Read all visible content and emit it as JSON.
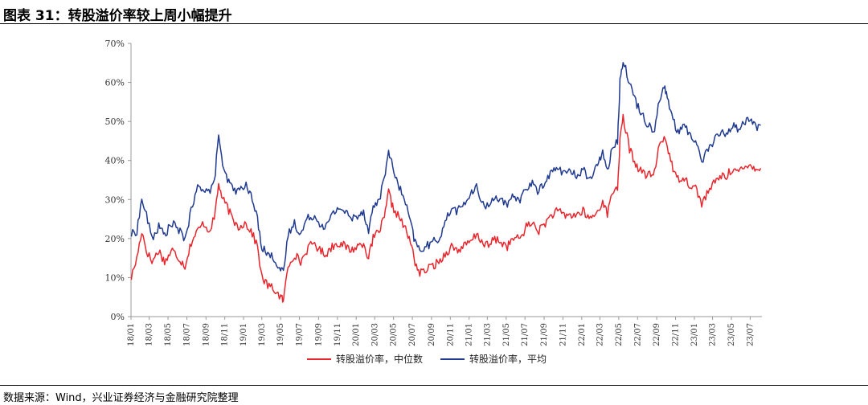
{
  "figure_title": "图表 31：转股溢价率较上周小幅提升",
  "source_note": "数据来源：Wind，兴业证券经济与金融研究院整理",
  "colors": {
    "median": "#e8262d",
    "mean": "#1f3a8f",
    "axis": "#999999"
  },
  "chart_data": {
    "type": "line",
    "title": "",
    "xlabel": "",
    "ylabel": "",
    "ylim": [
      0,
      70
    ],
    "y_unit": "%",
    "y_ticks": [
      "0%",
      "10%",
      "20%",
      "30%",
      "40%",
      "50%",
      "60%",
      "70%"
    ],
    "x_ticks": [
      "18/01",
      "18/03",
      "18/05",
      "18/07",
      "18/09",
      "18/11",
      "19/01",
      "19/03",
      "19/05",
      "19/07",
      "19/09",
      "19/11",
      "20/01",
      "20/03",
      "20/05",
      "20/07",
      "20/09",
      "20/11",
      "21/01",
      "21/03",
      "21/05",
      "21/07",
      "21/09",
      "21/11",
      "22/01",
      "22/03",
      "22/05",
      "22/07",
      "22/09",
      "22/11",
      "23/01",
      "23/03",
      "23/05",
      "23/07"
    ],
    "legend_position": "bottom",
    "grid": false,
    "series": [
      {
        "name": "转股溢价率，中位数",
        "color": "#e8262d",
        "points": [
          [
            "2018-01-02",
            10
          ],
          [
            "2018-01-20",
            15
          ],
          [
            "2018-02-05",
            22
          ],
          [
            "2018-02-20",
            17
          ],
          [
            "2018-03-10",
            14
          ],
          [
            "2018-04-01",
            17
          ],
          [
            "2018-04-20",
            14
          ],
          [
            "2018-05-15",
            17
          ],
          [
            "2018-06-05",
            15
          ],
          [
            "2018-06-25",
            13
          ],
          [
            "2018-07-15",
            19
          ],
          [
            "2018-08-05",
            22
          ],
          [
            "2018-08-25",
            24
          ],
          [
            "2018-09-10",
            22
          ],
          [
            "2018-09-28",
            25
          ],
          [
            "2018-10-12",
            34
          ],
          [
            "2018-10-25",
            30
          ],
          [
            "2018-11-10",
            28
          ],
          [
            "2018-11-25",
            25
          ],
          [
            "2018-12-15",
            23
          ],
          [
            "2019-01-05",
            24
          ],
          [
            "2019-01-25",
            22
          ],
          [
            "2019-02-15",
            18
          ],
          [
            "2019-03-01",
            10
          ],
          [
            "2019-03-20",
            8
          ],
          [
            "2019-04-10",
            7
          ],
          [
            "2019-05-01",
            5
          ],
          [
            "2019-05-10",
            4
          ],
          [
            "2019-05-25",
            13
          ],
          [
            "2019-06-15",
            16
          ],
          [
            "2019-07-05",
            14
          ],
          [
            "2019-07-25",
            17
          ],
          [
            "2019-08-15",
            19
          ],
          [
            "2019-09-05",
            17
          ],
          [
            "2019-09-25",
            16
          ],
          [
            "2019-10-15",
            18
          ],
          [
            "2019-11-05",
            19
          ],
          [
            "2019-11-25",
            18
          ],
          [
            "2019-12-15",
            17
          ],
          [
            "2020-01-05",
            18
          ],
          [
            "2020-01-25",
            19
          ],
          [
            "2020-02-10",
            15
          ],
          [
            "2020-02-25",
            20
          ],
          [
            "2020-03-15",
            22
          ],
          [
            "2020-04-01",
            25
          ],
          [
            "2020-04-15",
            32
          ],
          [
            "2020-04-28",
            28
          ],
          [
            "2020-05-15",
            26
          ],
          [
            "2020-06-05",
            23
          ],
          [
            "2020-06-25",
            19
          ],
          [
            "2020-07-10",
            14
          ],
          [
            "2020-07-25",
            11
          ],
          [
            "2020-08-15",
            12
          ],
          [
            "2020-09-05",
            13
          ],
          [
            "2020-09-25",
            14
          ],
          [
            "2020-10-15",
            16
          ],
          [
            "2020-11-05",
            18
          ],
          [
            "2020-11-25",
            17
          ],
          [
            "2020-12-15",
            18
          ],
          [
            "2021-01-05",
            19
          ],
          [
            "2021-01-25",
            21
          ],
          [
            "2021-02-15",
            19
          ],
          [
            "2021-03-05",
            18
          ],
          [
            "2021-03-25",
            20
          ],
          [
            "2021-04-15",
            19
          ],
          [
            "2021-05-05",
            18
          ],
          [
            "2021-05-25",
            20
          ],
          [
            "2021-06-15",
            20
          ],
          [
            "2021-07-05",
            23
          ],
          [
            "2021-07-25",
            24
          ],
          [
            "2021-08-15",
            22
          ],
          [
            "2021-09-05",
            24
          ],
          [
            "2021-09-25",
            26
          ],
          [
            "2021-10-15",
            27
          ],
          [
            "2021-11-05",
            26
          ],
          [
            "2021-11-25",
            26
          ],
          [
            "2021-12-15",
            26
          ],
          [
            "2022-01-05",
            27
          ],
          [
            "2022-01-25",
            25
          ],
          [
            "2022-02-10",
            26
          ],
          [
            "2022-02-25",
            27
          ],
          [
            "2022-03-10",
            30
          ],
          [
            "2022-03-25",
            26
          ],
          [
            "2022-04-10",
            32
          ],
          [
            "2022-04-27",
            33
          ],
          [
            "2022-05-05",
            45
          ],
          [
            "2022-05-15",
            51
          ],
          [
            "2022-06-05",
            43
          ],
          [
            "2022-06-25",
            39
          ],
          [
            "2022-07-15",
            37
          ],
          [
            "2022-08-05",
            36
          ],
          [
            "2022-08-25",
            37
          ],
          [
            "2022-09-10",
            44
          ],
          [
            "2022-09-25",
            46
          ],
          [
            "2022-10-05",
            44
          ],
          [
            "2022-10-20",
            39
          ],
          [
            "2022-11-05",
            35
          ],
          [
            "2022-11-25",
            36
          ],
          [
            "2022-12-15",
            34
          ],
          [
            "2023-01-05",
            33
          ],
          [
            "2023-01-25",
            29
          ],
          [
            "2023-02-15",
            32
          ],
          [
            "2023-03-05",
            34
          ],
          [
            "2023-03-25",
            36
          ],
          [
            "2023-04-15",
            36
          ],
          [
            "2023-05-05",
            38
          ],
          [
            "2023-05-25",
            37
          ],
          [
            "2023-06-15",
            38
          ],
          [
            "2023-07-05",
            39
          ],
          [
            "2023-07-20",
            38
          ],
          [
            "2023-08-04",
            38
          ]
        ]
      },
      {
        "name": "转股溢价率，平均",
        "color": "#1f3a8f",
        "points": [
          [
            "2018-01-02",
            21
          ],
          [
            "2018-01-20",
            22
          ],
          [
            "2018-02-05",
            30
          ],
          [
            "2018-02-20",
            26
          ],
          [
            "2018-03-10",
            20
          ],
          [
            "2018-04-01",
            23
          ],
          [
            "2018-04-20",
            21
          ],
          [
            "2018-05-15",
            24
          ],
          [
            "2018-06-05",
            22
          ],
          [
            "2018-06-25",
            20
          ],
          [
            "2018-07-15",
            27
          ],
          [
            "2018-08-05",
            33
          ],
          [
            "2018-08-25",
            33
          ],
          [
            "2018-09-10",
            32
          ],
          [
            "2018-09-28",
            34
          ],
          [
            "2018-10-12",
            47
          ],
          [
            "2018-10-25",
            38
          ],
          [
            "2018-11-10",
            35
          ],
          [
            "2018-11-25",
            33
          ],
          [
            "2018-12-15",
            32
          ],
          [
            "2019-01-05",
            34
          ],
          [
            "2019-01-25",
            31
          ],
          [
            "2019-02-15",
            25
          ],
          [
            "2019-03-01",
            18
          ],
          [
            "2019-03-20",
            16
          ],
          [
            "2019-04-10",
            15
          ],
          [
            "2019-05-01",
            12
          ],
          [
            "2019-05-10",
            11
          ],
          [
            "2019-05-25",
            21
          ],
          [
            "2019-06-15",
            24
          ],
          [
            "2019-07-05",
            21
          ],
          [
            "2019-07-25",
            25
          ],
          [
            "2019-08-15",
            26
          ],
          [
            "2019-09-05",
            24
          ],
          [
            "2019-09-25",
            23
          ],
          [
            "2019-10-15",
            26
          ],
          [
            "2019-11-05",
            28
          ],
          [
            "2019-11-25",
            27
          ],
          [
            "2019-12-15",
            25
          ],
          [
            "2020-01-05",
            26
          ],
          [
            "2020-01-25",
            27
          ],
          [
            "2020-02-10",
            22
          ],
          [
            "2020-02-25",
            28
          ],
          [
            "2020-03-15",
            30
          ],
          [
            "2020-04-01",
            35
          ],
          [
            "2020-04-15",
            43
          ],
          [
            "2020-04-28",
            38
          ],
          [
            "2020-05-15",
            34
          ],
          [
            "2020-06-05",
            30
          ],
          [
            "2020-06-25",
            24
          ],
          [
            "2020-07-10",
            19
          ],
          [
            "2020-07-25",
            17
          ],
          [
            "2020-08-15",
            18
          ],
          [
            "2020-09-05",
            19
          ],
          [
            "2020-09-25",
            20
          ],
          [
            "2020-10-15",
            24
          ],
          [
            "2020-11-05",
            28
          ],
          [
            "2020-11-25",
            27
          ],
          [
            "2020-12-15",
            29
          ],
          [
            "2021-01-05",
            31
          ],
          [
            "2021-01-25",
            33
          ],
          [
            "2021-02-15",
            29
          ],
          [
            "2021-03-05",
            28
          ],
          [
            "2021-03-25",
            31
          ],
          [
            "2021-04-15",
            30
          ],
          [
            "2021-05-05",
            28
          ],
          [
            "2021-05-25",
            31
          ],
          [
            "2021-06-15",
            30
          ],
          [
            "2021-07-05",
            33
          ],
          [
            "2021-07-25",
            34
          ],
          [
            "2021-08-15",
            32
          ],
          [
            "2021-09-05",
            35
          ],
          [
            "2021-09-25",
            37
          ],
          [
            "2021-10-15",
            38
          ],
          [
            "2021-11-05",
            37
          ],
          [
            "2021-11-25",
            37
          ],
          [
            "2021-12-15",
            36
          ],
          [
            "2022-01-05",
            38
          ],
          [
            "2022-01-25",
            35
          ],
          [
            "2022-02-10",
            37
          ],
          [
            "2022-02-25",
            39
          ],
          [
            "2022-03-10",
            43
          ],
          [
            "2022-03-25",
            37
          ],
          [
            "2022-04-10",
            44
          ],
          [
            "2022-04-27",
            45
          ],
          [
            "2022-05-05",
            60
          ],
          [
            "2022-05-15",
            66
          ],
          [
            "2022-06-05",
            60
          ],
          [
            "2022-06-25",
            55
          ],
          [
            "2022-07-15",
            52
          ],
          [
            "2022-08-05",
            49
          ],
          [
            "2022-08-25",
            48
          ],
          [
            "2022-09-10",
            56
          ],
          [
            "2022-09-25",
            59
          ],
          [
            "2022-10-05",
            56
          ],
          [
            "2022-10-20",
            52
          ],
          [
            "2022-11-05",
            47
          ],
          [
            "2022-11-25",
            49
          ],
          [
            "2022-12-15",
            47
          ],
          [
            "2023-01-05",
            45
          ],
          [
            "2023-01-25",
            40
          ],
          [
            "2023-02-15",
            43
          ],
          [
            "2023-03-05",
            45
          ],
          [
            "2023-03-25",
            47
          ],
          [
            "2023-04-15",
            47
          ],
          [
            "2023-05-05",
            49
          ],
          [
            "2023-05-25",
            48
          ],
          [
            "2023-06-15",
            50
          ],
          [
            "2023-07-05",
            51
          ],
          [
            "2023-07-20",
            48
          ],
          [
            "2023-08-04",
            49
          ]
        ]
      }
    ]
  }
}
